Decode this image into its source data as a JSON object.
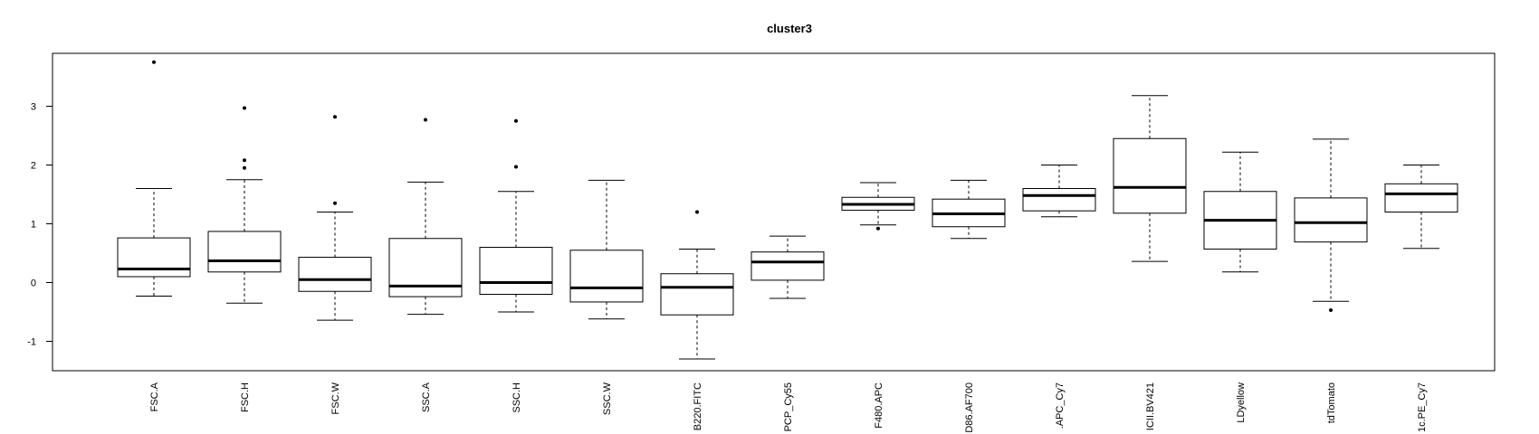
{
  "chart_data": {
    "type": "boxplot",
    "title": "cluster3",
    "xlabel": "",
    "ylabel": "",
    "ylim": [
      -1.5,
      3.9
    ],
    "yticks": [
      -1,
      0,
      1,
      2,
      3
    ],
    "grid": false,
    "categories": [
      "FSC.A",
      "FSC.H",
      "FSC.W",
      "SSC.A",
      "SSC.H",
      "SSC.W",
      "B220.FITC",
      "PCP_Cy55",
      "F480.APC",
      "D86.AF700",
      ".APC_Cy7",
      "ICII.BV421",
      "LDyellow",
      "tdTomato",
      "1c.PE_Cy7"
    ],
    "boxes": [
      {
        "whisker_low": -0.23,
        "q1": 0.1,
        "median": 0.23,
        "q3": 0.76,
        "whisker_high": 1.6,
        "outliers": [
          3.75
        ]
      },
      {
        "whisker_low": -0.35,
        "q1": 0.18,
        "median": 0.37,
        "q3": 0.87,
        "whisker_high": 1.75,
        "outliers": [
          1.95,
          2.08,
          2.97
        ]
      },
      {
        "whisker_low": -0.64,
        "q1": -0.15,
        "median": 0.05,
        "q3": 0.43,
        "whisker_high": 1.2,
        "outliers": [
          1.35,
          2.82
        ]
      },
      {
        "whisker_low": -0.54,
        "q1": -0.24,
        "median": -0.06,
        "q3": 0.75,
        "whisker_high": 1.71,
        "outliers": [
          2.77
        ]
      },
      {
        "whisker_low": -0.5,
        "q1": -0.2,
        "median": 0.0,
        "q3": 0.6,
        "whisker_high": 1.55,
        "outliers": [
          1.97,
          2.75
        ]
      },
      {
        "whisker_low": -0.62,
        "q1": -0.33,
        "median": -0.09,
        "q3": 0.55,
        "whisker_high": 1.74,
        "outliers": []
      },
      {
        "whisker_low": -1.3,
        "q1": -0.55,
        "median": -0.08,
        "q3": 0.15,
        "whisker_high": 0.57,
        "outliers": [
          1.2
        ]
      },
      {
        "whisker_low": -0.27,
        "q1": 0.04,
        "median": 0.35,
        "q3": 0.52,
        "whisker_high": 0.79,
        "outliers": []
      },
      {
        "whisker_low": 0.98,
        "q1": 1.23,
        "median": 1.33,
        "q3": 1.45,
        "whisker_high": 1.7,
        "outliers": [
          0.92
        ]
      },
      {
        "whisker_low": 0.75,
        "q1": 0.95,
        "median": 1.17,
        "q3": 1.42,
        "whisker_high": 1.74,
        "outliers": []
      },
      {
        "whisker_low": 1.12,
        "q1": 1.22,
        "median": 1.48,
        "q3": 1.6,
        "whisker_high": 2.0,
        "outliers": []
      },
      {
        "whisker_low": 0.36,
        "q1": 1.18,
        "median": 1.62,
        "q3": 2.45,
        "whisker_high": 3.18,
        "outliers": []
      },
      {
        "whisker_low": 0.18,
        "q1": 0.57,
        "median": 1.06,
        "q3": 1.55,
        "whisker_high": 2.22,
        "outliers": []
      },
      {
        "whisker_low": -0.32,
        "q1": 0.69,
        "median": 1.02,
        "q3": 1.44,
        "whisker_high": 2.44,
        "outliers": [
          -0.47
        ]
      },
      {
        "whisker_low": 0.58,
        "q1": 1.2,
        "median": 1.51,
        "q3": 1.68,
        "whisker_high": 2.0,
        "outliers": []
      }
    ]
  }
}
